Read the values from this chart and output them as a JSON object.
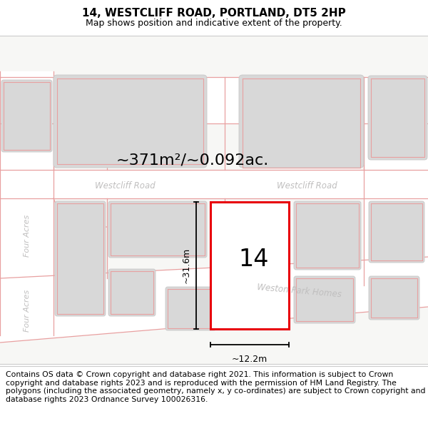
{
  "title": "14, WESTCLIFF ROAD, PORTLAND, DT5 2HP",
  "subtitle": "Map shows position and indicative extent of the property.",
  "footer": "Contains OS data © Crown copyright and database right 2021. This information is subject to Crown copyright and database rights 2023 and is reproduced with the permission of HM Land Registry. The polygons (including the associated geometry, namely x, y co-ordinates) are subject to Crown copyright and database rights 2023 Ordnance Survey 100026316.",
  "area_label": "~371m²/~0.092ac.",
  "width_label": "~12.2m",
  "height_label": "~31.6m",
  "plot_number": "14",
  "bg_color": "#f7f7f5",
  "bld_color": "#d8d8d8",
  "bld_edge": "#c8c8c8",
  "red": "#e8000a",
  "pink": "#e8a0a0",
  "road_label": "#c0bfbf",
  "title_fontsize": 11,
  "subtitle_fontsize": 9,
  "footer_fontsize": 7.8,
  "area_fontsize": 16,
  "plot_num_fontsize": 24
}
